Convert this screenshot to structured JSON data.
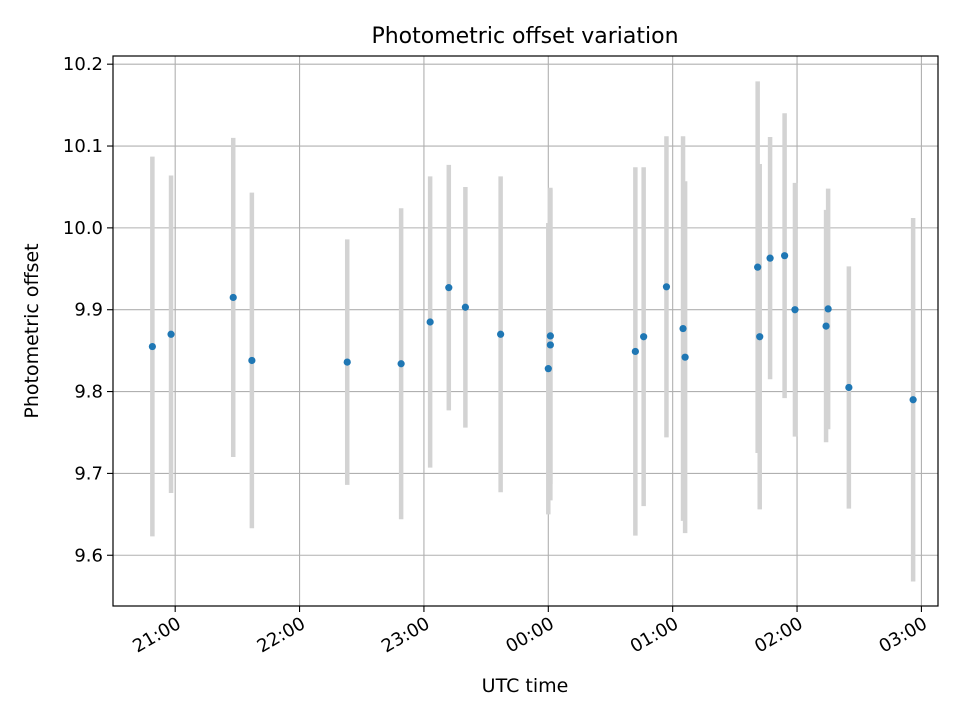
{
  "chart_data": {
    "type": "scatter",
    "title": "Photometric offset variation",
    "xlabel": "UTC time",
    "ylabel": "Photometric offset",
    "grid": true,
    "legend": "none",
    "x_axis": {
      "kind": "time",
      "range": [
        "20:30",
        "03:08"
      ],
      "ticks": [
        "21:00",
        "22:00",
        "23:00",
        "00:00",
        "01:00",
        "02:00",
        "03:00"
      ]
    },
    "y_axis": {
      "range": [
        9.538,
        10.21
      ],
      "ticks": [
        9.6,
        9.7,
        9.8,
        9.9,
        10.0,
        10.1,
        10.2
      ],
      "tick_labels": [
        "9.6",
        "9.7",
        "9.8",
        "9.9",
        "10.0",
        "10.1",
        "10.2"
      ]
    },
    "series": [
      {
        "marker_color": "#1f77b4",
        "errorbar_color": "#d3d3d3",
        "points": [
          {
            "t": "20:49",
            "y": 9.855,
            "err": 0.232
          },
          {
            "t": "20:58",
            "y": 9.87,
            "err": 0.194
          },
          {
            "t": "21:28",
            "y": 9.915,
            "err": 0.195
          },
          {
            "t": "21:37",
            "y": 9.838,
            "err": 0.205
          },
          {
            "t": "22:23",
            "y": 9.836,
            "err": 0.15
          },
          {
            "t": "22:49",
            "y": 9.834,
            "err": 0.19
          },
          {
            "t": "23:03",
            "y": 9.885,
            "err": 0.178
          },
          {
            "t": "23:12",
            "y": 9.927,
            "err": 0.15
          },
          {
            "t": "23:20",
            "y": 9.903,
            "err": 0.147
          },
          {
            "t": "23:37",
            "y": 9.87,
            "err": 0.193
          },
          {
            "t": "24:00",
            "y": 9.828,
            "err": 0.178
          },
          {
            "t": "24:01",
            "y": 9.868,
            "err": 0.181
          },
          {
            "t": "24:01",
            "y": 9.857,
            "err": 0.19
          },
          {
            "t": "24:42",
            "y": 9.849,
            "err": 0.225
          },
          {
            "t": "24:46",
            "y": 9.867,
            "err": 0.207
          },
          {
            "t": "24:57",
            "y": 9.928,
            "err": 0.184
          },
          {
            "t": "25:05",
            "y": 9.877,
            "err": 0.235
          },
          {
            "t": "25:06",
            "y": 9.842,
            "err": 0.215
          },
          {
            "t": "25:41",
            "y": 9.952,
            "err": 0.227
          },
          {
            "t": "25:42",
            "y": 9.867,
            "err": 0.211
          },
          {
            "t": "25:47",
            "y": 9.963,
            "err": 0.148
          },
          {
            "t": "25:54",
            "y": 9.966,
            "err": 0.174
          },
          {
            "t": "25:59",
            "y": 9.9,
            "err": 0.155
          },
          {
            "t": "26:14",
            "y": 9.88,
            "err": 0.142
          },
          {
            "t": "26:15",
            "y": 9.901,
            "err": 0.147
          },
          {
            "t": "26:25",
            "y": 9.805,
            "err": 0.148
          },
          {
            "t": "26:56",
            "y": 9.79,
            "err": 0.222
          }
        ]
      }
    ]
  }
}
